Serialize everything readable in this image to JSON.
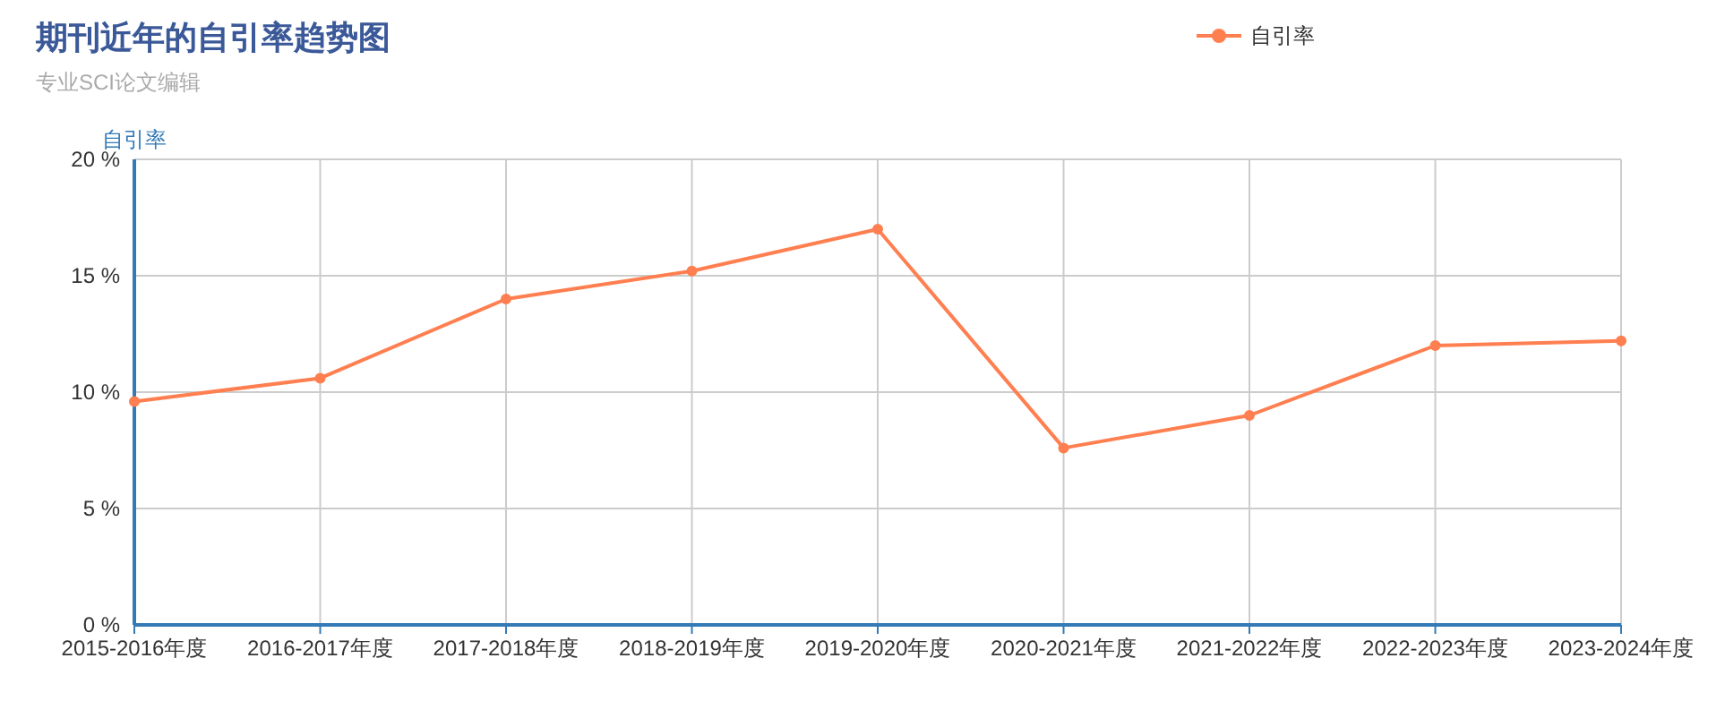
{
  "chart_data": {
    "type": "line",
    "title": "期刊近年的自引率趋势图",
    "subtitle": "专业SCI论文编辑",
    "ylabel": "自引率",
    "categories": [
      "2015-2016年度",
      "2016-2017年度",
      "2017-2018年度",
      "2018-2019年度",
      "2019-2020年度",
      "2020-2021年度",
      "2021-2022年度",
      "2022-2023年度",
      "2023-2024年度"
    ],
    "series": [
      {
        "name": "自引率",
        "color": "#ff7f50",
        "values": [
          9.6,
          10.6,
          14.0,
          15.2,
          17.0,
          7.6,
          9.0,
          12.0,
          12.2
        ]
      }
    ],
    "ylim": [
      0,
      20
    ],
    "yticks": [
      {
        "value": 0,
        "label": "0 %"
      },
      {
        "value": 5,
        "label": "5 %"
      },
      {
        "value": 10,
        "label": "10 %"
      },
      {
        "value": 15,
        "label": "15 %"
      },
      {
        "value": 20,
        "label": "20 %"
      }
    ],
    "grid": true,
    "legend": "top right",
    "marker": "circle",
    "line_style": "solid"
  }
}
